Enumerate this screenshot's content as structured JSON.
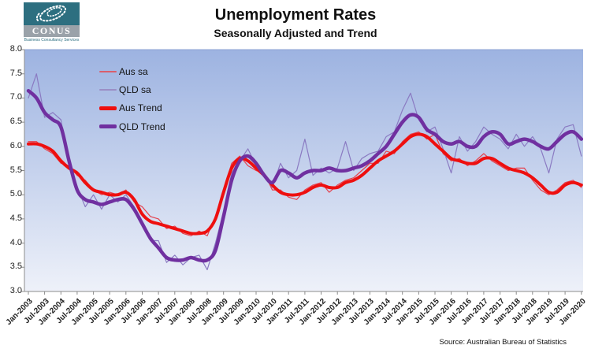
{
  "logo": {
    "name": "CONUS",
    "tagline": "Business Consultancy Services",
    "box_color": "#2d6f80",
    "band_color": "#9aa2a9"
  },
  "header": {
    "title": "Unemployment Rates",
    "subtitle": "Seasonally Adjusted and Trend"
  },
  "source_note": "Source: Australian Bureau of Statistics",
  "legend": {
    "items": [
      {
        "label": "Aus sa",
        "color": "#d95f6d",
        "thickness": 2
      },
      {
        "label": "QLD sa",
        "color": "#9b8ec6",
        "thickness": 2
      },
      {
        "label": "Aus Trend",
        "color": "#ee0f0f",
        "thickness": 5
      },
      {
        "label": "QLD Trend",
        "color": "#7030a0",
        "thickness": 5
      }
    ]
  },
  "plot_style": {
    "bg_top": "#9db3e1",
    "bg_bottom": "#eef1f9",
    "axis_color": "#8c8c8c",
    "top_border_color": "#8ea3d3"
  },
  "chart_data": {
    "type": "line",
    "title": "Unemployment Rates",
    "subtitle": "Seasonally Adjusted and Trend",
    "x_start": "Jan-2003",
    "x_end": "Jan-2020",
    "sample_interval_months": 3,
    "ylim": [
      3.0,
      8.0
    ],
    "grid": false,
    "legend_position": "top-left-inside",
    "y_tick_labels": [
      "8.0",
      "7.5",
      "7.0",
      "6.5",
      "6.0",
      "5.5",
      "5.0",
      "4.5",
      "4.0",
      "3.5",
      "3.0"
    ],
    "x_tick_labels": [
      "Jan-2003",
      "Jul-2003",
      "Jan-2004",
      "Jul-2004",
      "Jan-2005",
      "Jul-2005",
      "Jan-2006",
      "Jul-2006",
      "Jan-2007",
      "Jul-2007",
      "Jan-2008",
      "Jul-2008",
      "Jan-2009",
      "Jul-2009",
      "Jan-2010",
      "Jul-2010",
      "Jan-2011",
      "Jul-2011",
      "Jan-2012",
      "Jul-2012",
      "Jan-2013",
      "Jul-2013",
      "Jan-2014",
      "Jul-2014",
      "Jan-2015",
      "Jul-2015",
      "Jan-2016",
      "Jul-2016",
      "Jan-2017",
      "Jul-2017",
      "Jan-2018",
      "Jul-2018",
      "Jan-2019",
      "Jul-2019",
      "Jan-2020"
    ],
    "series": [
      {
        "name": "Aus sa",
        "color": "#e5404c",
        "width": 1.2,
        "smooth": false,
        "values": [
          6.1,
          6.1,
          5.95,
          5.85,
          5.65,
          5.6,
          5.4,
          5.3,
          5.1,
          5.0,
          5.05,
          5.0,
          5.1,
          4.85,
          4.75,
          4.55,
          4.5,
          4.3,
          4.35,
          4.2,
          4.15,
          4.25,
          4.15,
          4.55,
          5.1,
          5.65,
          5.8,
          5.6,
          5.5,
          5.45,
          5.1,
          5.1,
          4.95,
          4.9,
          5.1,
          5.2,
          5.25,
          5.05,
          5.2,
          5.3,
          5.35,
          5.5,
          5.65,
          5.65,
          5.9,
          5.85,
          6.1,
          6.25,
          6.3,
          6.15,
          6.25,
          5.85,
          5.7,
          5.75,
          5.6,
          5.7,
          5.85,
          5.7,
          5.6,
          5.5,
          5.55,
          5.55,
          5.3,
          5.1,
          5.0,
          5.1,
          5.25,
          5.3,
          5.15
        ]
      },
      {
        "name": "QLD sa",
        "color": "#8a7ac2",
        "width": 1.2,
        "smooth": false,
        "values": [
          7.0,
          7.5,
          6.6,
          6.7,
          6.55,
          5.6,
          5.15,
          4.75,
          5.0,
          4.7,
          5.0,
          4.85,
          5.0,
          4.75,
          4.35,
          4.05,
          4.05,
          3.6,
          3.75,
          3.55,
          3.7,
          3.75,
          3.45,
          4.0,
          4.65,
          5.45,
          5.7,
          5.95,
          5.6,
          5.4,
          5.15,
          5.65,
          5.35,
          5.5,
          6.15,
          5.4,
          5.55,
          5.45,
          5.55,
          6.1,
          5.5,
          5.75,
          5.85,
          5.9,
          6.2,
          6.3,
          6.75,
          7.1,
          6.55,
          6.3,
          6.4,
          5.95,
          5.45,
          6.2,
          5.9,
          6.1,
          6.4,
          6.25,
          6.15,
          5.95,
          6.25,
          6.0,
          6.2,
          5.95,
          5.45,
          6.15,
          6.4,
          6.45,
          5.8
        ]
      },
      {
        "name": "Aus Trend",
        "color": "#ee0f0f",
        "width": 4,
        "smooth": true,
        "values": [
          6.05,
          6.05,
          6.0,
          5.9,
          5.7,
          5.55,
          5.45,
          5.25,
          5.1,
          5.05,
          5.0,
          5.0,
          5.05,
          4.9,
          4.6,
          4.45,
          4.4,
          4.35,
          4.3,
          4.25,
          4.2,
          4.2,
          4.25,
          4.5,
          5.05,
          5.55,
          5.75,
          5.7,
          5.55,
          5.4,
          5.2,
          5.05,
          5.0,
          5.0,
          5.05,
          5.15,
          5.2,
          5.15,
          5.15,
          5.25,
          5.3,
          5.4,
          5.55,
          5.7,
          5.8,
          5.9,
          6.05,
          6.2,
          6.25,
          6.2,
          6.05,
          5.9,
          5.75,
          5.7,
          5.65,
          5.65,
          5.75,
          5.75,
          5.65,
          5.55,
          5.5,
          5.45,
          5.35,
          5.2,
          5.05,
          5.05,
          5.2,
          5.25,
          5.2
        ]
      },
      {
        "name": "QLD Trend",
        "color": "#7030a0",
        "width": 4.5,
        "smooth": true,
        "values": [
          7.15,
          7.0,
          6.7,
          6.55,
          6.4,
          5.7,
          5.1,
          4.9,
          4.85,
          4.8,
          4.85,
          4.9,
          4.9,
          4.7,
          4.4,
          4.1,
          3.9,
          3.7,
          3.65,
          3.65,
          3.7,
          3.65,
          3.65,
          3.85,
          4.55,
          5.3,
          5.7,
          5.8,
          5.65,
          5.4,
          5.25,
          5.5,
          5.45,
          5.35,
          5.45,
          5.5,
          5.5,
          5.55,
          5.5,
          5.5,
          5.55,
          5.6,
          5.7,
          5.85,
          6.0,
          6.25,
          6.5,
          6.65,
          6.6,
          6.35,
          6.25,
          6.1,
          6.05,
          6.1,
          6.0,
          6.0,
          6.2,
          6.3,
          6.25,
          6.05,
          6.1,
          6.15,
          6.1,
          6.0,
          5.95,
          6.1,
          6.25,
          6.3,
          6.15
        ]
      }
    ]
  }
}
